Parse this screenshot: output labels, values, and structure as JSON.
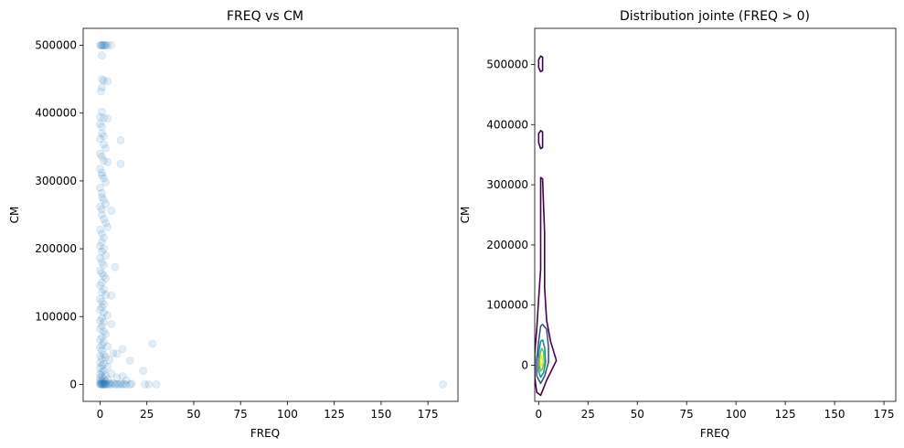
{
  "chart_data": [
    {
      "type": "scatter",
      "title": "FREQ vs CM",
      "xlabel": "FREQ",
      "ylabel": "CM",
      "xlim": [
        -9,
        191
      ],
      "ylim": [
        -25000,
        525000
      ],
      "xticks": [
        0,
        25,
        50,
        75,
        100,
        125,
        150,
        175
      ],
      "yticks": [
        0,
        100000,
        200000,
        300000,
        400000,
        500000
      ],
      "grid": false,
      "marker_color": "#1f77b4",
      "marker_alpha": 0.12,
      "points": [
        [
          0,
          500000
        ],
        [
          0.5,
          500000
        ],
        [
          1,
          500000
        ],
        [
          1.5,
          500000
        ],
        [
          2,
          500000
        ],
        [
          2.5,
          500000
        ],
        [
          3,
          500000
        ],
        [
          4,
          500000
        ],
        [
          6,
          500000
        ],
        [
          1,
          485000
        ],
        [
          1,
          450000
        ],
        [
          2,
          448000
        ],
        [
          4,
          447000
        ],
        [
          1,
          438000
        ],
        [
          0.5,
          432000
        ],
        [
          1,
          402000
        ],
        [
          0,
          394000
        ],
        [
          2,
          393000
        ],
        [
          4,
          392000
        ],
        [
          0,
          384000
        ],
        [
          1,
          380000
        ],
        [
          1,
          370000
        ],
        [
          2,
          366000
        ],
        [
          0,
          362000
        ],
        [
          11,
          360000
        ],
        [
          2,
          354000
        ],
        [
          3,
          348000
        ],
        [
          0,
          340000
        ],
        [
          1,
          336000
        ],
        [
          2,
          330000
        ],
        [
          4,
          328000
        ],
        [
          11,
          325000
        ],
        [
          0,
          318000
        ],
        [
          1,
          312000
        ],
        [
          1,
          308000
        ],
        [
          2,
          304000
        ],
        [
          3,
          298000
        ],
        [
          0,
          290000
        ],
        [
          1,
          282000
        ],
        [
          1,
          276000
        ],
        [
          2,
          272000
        ],
        [
          3,
          266000
        ],
        [
          0,
          262000
        ],
        [
          1,
          258000
        ],
        [
          6,
          256000
        ],
        [
          1,
          250000
        ],
        [
          2,
          244000
        ],
        [
          3,
          238000
        ],
        [
          4,
          232000
        ],
        [
          0,
          228000
        ],
        [
          1,
          222000
        ],
        [
          2,
          216000
        ],
        [
          1,
          210000
        ],
        [
          0,
          204000
        ],
        [
          2,
          200000
        ],
        [
          1,
          196000
        ],
        [
          3,
          190000
        ],
        [
          0,
          186000
        ],
        [
          1,
          180000
        ],
        [
          2,
          176000
        ],
        [
          8,
          173000
        ],
        [
          0,
          168000
        ],
        [
          1,
          164000
        ],
        [
          2,
          160000
        ],
        [
          3,
          156000
        ],
        [
          1,
          150000
        ],
        [
          0,
          146000
        ],
        [
          2,
          140000
        ],
        [
          1,
          136000
        ],
        [
          3,
          132000
        ],
        [
          6,
          131000
        ],
        [
          0,
          126000
        ],
        [
          1,
          122000
        ],
        [
          2,
          118000
        ],
        [
          1,
          114000
        ],
        [
          0,
          110000
        ],
        [
          2,
          106000
        ],
        [
          4,
          102000
        ],
        [
          1,
          98000
        ],
        [
          0,
          94000
        ],
        [
          2,
          92000
        ],
        [
          6,
          89000
        ],
        [
          1,
          86000
        ],
        [
          0,
          82000
        ],
        [
          2,
          78000
        ],
        [
          3,
          74000
        ],
        [
          1,
          70000
        ],
        [
          0,
          66000
        ],
        [
          2,
          62000
        ],
        [
          28,
          60000
        ],
        [
          1,
          58000
        ],
        [
          4,
          56000
        ],
        [
          0,
          54000
        ],
        [
          12,
          52000
        ],
        [
          1,
          50000
        ],
        [
          7,
          46000
        ],
        [
          9,
          45000
        ],
        [
          2,
          44000
        ],
        [
          0,
          42000
        ],
        [
          3,
          40000
        ],
        [
          1,
          38000
        ],
        [
          5,
          36000
        ],
        [
          16,
          35000
        ],
        [
          0,
          32000
        ],
        [
          2,
          30000
        ],
        [
          1,
          28000
        ],
        [
          4,
          26000
        ],
        [
          0,
          24000
        ],
        [
          23,
          20000
        ],
        [
          2,
          20000
        ],
        [
          1,
          18000
        ],
        [
          6,
          16000
        ],
        [
          0,
          15000
        ],
        [
          3,
          14000
        ],
        [
          12,
          12000
        ],
        [
          1,
          12000
        ],
        [
          9,
          10000
        ],
        [
          0,
          9000
        ],
        [
          2,
          8000
        ],
        [
          4,
          7000
        ],
        [
          1,
          6000
        ],
        [
          14,
          6000
        ],
        [
          0,
          5000
        ],
        [
          3,
          4000
        ],
        [
          2,
          3000
        ],
        [
          1,
          2500
        ],
        [
          5,
          2000
        ],
        [
          7,
          1500
        ],
        [
          0,
          1000
        ],
        [
          1,
          800
        ],
        [
          2,
          600
        ],
        [
          3,
          400
        ],
        [
          4,
          300
        ],
        [
          0,
          200
        ],
        [
          1,
          150
        ],
        [
          2,
          100
        ],
        [
          3,
          50
        ],
        [
          5,
          0
        ],
        [
          6,
          0
        ],
        [
          8,
          0
        ],
        [
          10,
          0
        ],
        [
          12,
          0
        ],
        [
          14,
          0
        ],
        [
          16,
          0
        ],
        [
          17,
          1000
        ],
        [
          9,
          500
        ],
        [
          11,
          800
        ],
        [
          13,
          300
        ],
        [
          24,
          0
        ],
        [
          26,
          0
        ],
        [
          30,
          0
        ],
        [
          183,
          0
        ],
        [
          0.5,
          0
        ],
        [
          1.5,
          0
        ],
        [
          2.5,
          0
        ]
      ]
    },
    {
      "type": "contour",
      "title": "Distribution jointe (FREQ > 0)",
      "xlabel": "FREQ",
      "ylabel": "CM",
      "xlim": [
        -2,
        181
      ],
      "ylim": [
        -60000,
        560000
      ],
      "xticks": [
        0,
        25,
        50,
        75,
        100,
        125,
        150,
        175
      ],
      "yticks": [
        0,
        100000,
        200000,
        300000,
        400000,
        500000
      ],
      "grid": false,
      "colormap": "viridis",
      "levels": [
        {
          "color": "#440154",
          "paths": [
            [
              [
                1,
                -50000
              ],
              [
                4,
                -25000
              ],
              [
                9,
                8000
              ],
              [
                6,
                40000
              ],
              [
                4,
                75000
              ],
              [
                3,
                130000
              ],
              [
                3,
                220000
              ],
              [
                2,
                310000
              ],
              [
                1,
                312000
              ],
              [
                1,
                250000
              ],
              [
                1,
                160000
              ],
              [
                0,
                110000
              ],
              [
                -1,
                60000
              ],
              [
                -2,
                20000
              ],
              [
                -2,
                -20000
              ],
              [
                -1,
                -45000
              ]
            ],
            [
              [
                1,
                360000
              ],
              [
                2,
                362000
              ],
              [
                2,
                378000
              ],
              [
                2,
                388000
              ],
              [
                1,
                390000
              ],
              [
                0,
                385000
              ],
              [
                0,
                370000
              ]
            ],
            [
              [
                1,
                488000
              ],
              [
                2,
                490000
              ],
              [
                2,
                500000
              ],
              [
                2,
                512000
              ],
              [
                1,
                514000
              ],
              [
                0,
                508000
              ],
              [
                0,
                495000
              ]
            ]
          ]
        },
        {
          "color": "#3b528b",
          "paths": [
            [
              [
                1,
                -30000
              ],
              [
                3,
                -18000
              ],
              [
                5,
                5000
              ],
              [
                5,
                30000
              ],
              [
                4,
                60000
              ],
              [
                2,
                68000
              ],
              [
                1,
                65000
              ],
              [
                0,
                40000
              ],
              [
                -1,
                10000
              ],
              [
                -1,
                -18000
              ]
            ]
          ]
        },
        {
          "color": "#21918c",
          "paths": [
            [
              [
                1,
                -20000
              ],
              [
                2.5,
                -12000
              ],
              [
                3.5,
                5000
              ],
              [
                3,
                30000
              ],
              [
                2,
                42000
              ],
              [
                1,
                40000
              ],
              [
                0,
                20000
              ],
              [
                0,
                -10000
              ]
            ]
          ]
        },
        {
          "color": "#5ec962",
          "paths": [
            [
              [
                1,
                -10000
              ],
              [
                2,
                -5000
              ],
              [
                2.8,
                5000
              ],
              [
                2.5,
                22000
              ],
              [
                1.5,
                28000
              ],
              [
                0.8,
                20000
              ],
              [
                0.5,
                0
              ]
            ]
          ]
        },
        {
          "color": "#fde725",
          "paths": [
            [
              [
                1,
                -2000
              ],
              [
                1.8,
                2000
              ],
              [
                1.9,
                10000
              ],
              [
                1.4,
                16000
              ],
              [
                0.9,
                10000
              ],
              [
                0.9,
                2000
              ]
            ]
          ]
        }
      ]
    }
  ]
}
